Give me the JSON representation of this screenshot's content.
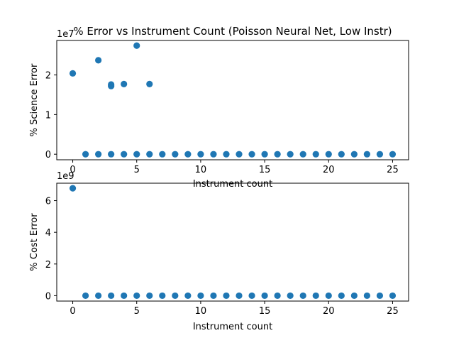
{
  "chart_data": [
    {
      "type": "scatter",
      "title": "% Error vs Instrument Count (Poisson Neural Net, Low Instr)",
      "xlabel": "Instrument count",
      "ylabel": "% Science Error",
      "offset_text": "1e7",
      "xlim": [
        -1.25,
        26.25
      ],
      "ylim": [
        -0.14,
        2.87
      ],
      "y_scale_multiplier": 10000000,
      "xticks": [
        0,
        5,
        10,
        15,
        20,
        25
      ],
      "yticks": [
        0,
        1,
        2
      ],
      "grid": false,
      "marker_color": "#1f77b4",
      "series": [
        {
          "x": [
            0,
            2,
            3,
            3,
            4,
            5,
            6,
            1,
            2,
            3,
            4,
            5,
            6,
            7,
            8,
            9,
            10,
            11,
            12,
            13,
            14,
            15,
            16,
            17,
            18,
            19,
            20,
            21,
            22,
            23,
            24,
            25
          ],
          "y": [
            2.04,
            2.37,
            1.72,
            1.76,
            1.77,
            2.74,
            1.77,
            0,
            0,
            0,
            0,
            0,
            0,
            0,
            0,
            0,
            0,
            0,
            0,
            0,
            0,
            0,
            0,
            0,
            0,
            0,
            0,
            0,
            0,
            0,
            0,
            0
          ]
        }
      ]
    },
    {
      "type": "scatter",
      "title": "",
      "xlabel": "Instrument count",
      "ylabel": "% Cost Error",
      "offset_text": "1e9",
      "xlim": [
        -1.25,
        26.25
      ],
      "ylim": [
        -0.34,
        7.1
      ],
      "y_scale_multiplier": 1000000000,
      "xticks": [
        0,
        5,
        10,
        15,
        20,
        25
      ],
      "yticks": [
        0,
        2,
        4,
        6
      ],
      "grid": false,
      "marker_color": "#1f77b4",
      "series": [
        {
          "x": [
            0,
            1,
            2,
            3,
            4,
            5,
            6,
            7,
            8,
            9,
            10,
            11,
            12,
            13,
            14,
            15,
            16,
            17,
            18,
            19,
            20,
            21,
            22,
            23,
            24,
            25
          ],
          "y": [
            6.78,
            0,
            0,
            0,
            0,
            0,
            0,
            0,
            0,
            0,
            0,
            0,
            0,
            0,
            0,
            0,
            0,
            0,
            0,
            0,
            0,
            0,
            0,
            0,
            0,
            0
          ]
        }
      ]
    }
  ]
}
